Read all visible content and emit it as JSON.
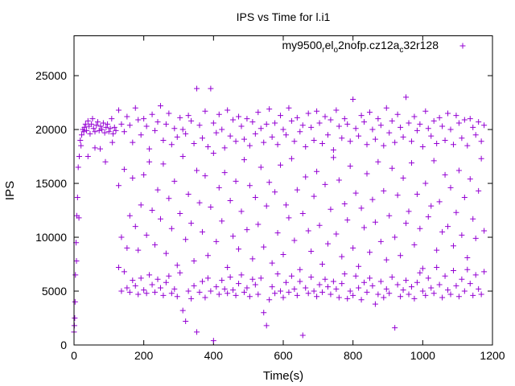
{
  "chart_data": {
    "type": "scatter",
    "title": "IPS vs Time for l.i1",
    "xlabel": "Time(s)",
    "ylabel": "IPS",
    "xlim": [
      0,
      1200
    ],
    "ylim": [
      0,
      28700
    ],
    "xticks": [
      "0",
      "200",
      "400",
      "600",
      "800",
      "1000",
      "1200"
    ],
    "xtick_values": [
      0,
      200,
      400,
      600,
      800,
      1000,
      1200
    ],
    "yticks": [
      "0",
      "5000",
      "10000",
      "15000",
      "20000",
      "25000"
    ],
    "ytick_values": [
      0,
      5000,
      10000,
      15000,
      20000,
      25000
    ],
    "grid": false,
    "legend_position": "top-right",
    "series": [
      {
        "name": "my9500_rel_o2nofp.cz12a_c32r128",
        "legend_parts": [
          {
            "t": "my9500",
            "sub": false
          },
          {
            "t": "r",
            "sub": true
          },
          {
            "t": "el",
            "sub": false
          },
          {
            "t": "o",
            "sub": true
          },
          {
            "t": "2nofp.cz12a",
            "sub": false
          },
          {
            "t": "c",
            "sub": true
          },
          {
            "t": "32r128",
            "sub": false
          }
        ],
        "color": "#9400d3",
        "marker": "plus",
        "points": [
          [
            0,
            1200
          ],
          [
            1,
            1800
          ],
          [
            2,
            2500
          ],
          [
            3,
            4000
          ],
          [
            4,
            6500
          ],
          [
            6,
            9500
          ],
          [
            7,
            7800
          ],
          [
            8,
            12000
          ],
          [
            10,
            13700
          ],
          [
            12,
            16500
          ],
          [
            14,
            11800
          ],
          [
            15,
            17500
          ],
          [
            18,
            19000
          ],
          [
            20,
            18500
          ],
          [
            22,
            19500
          ],
          [
            25,
            20000
          ],
          [
            28,
            19800
          ],
          [
            30,
            20200
          ],
          [
            33,
            20500
          ],
          [
            36,
            19900
          ],
          [
            40,
            20800
          ],
          [
            43,
            20300
          ],
          [
            46,
            19600
          ],
          [
            50,
            20500
          ],
          [
            53,
            21000
          ],
          [
            56,
            20100
          ],
          [
            60,
            19800
          ],
          [
            64,
            20400
          ],
          [
            68,
            20700
          ],
          [
            72,
            19900
          ],
          [
            76,
            20300
          ],
          [
            80,
            20000
          ],
          [
            84,
            20600
          ],
          [
            88,
            19700
          ],
          [
            92,
            20200
          ],
          [
            96,
            20500
          ],
          [
            100,
            19800
          ],
          [
            104,
            20100
          ],
          [
            108,
            21000
          ],
          [
            112,
            19600
          ],
          [
            116,
            20200
          ],
          [
            120,
            19900
          ],
          [
            60,
            18300
          ],
          [
            75,
            18200
          ],
          [
            90,
            17000
          ],
          [
            110,
            18800
          ],
          [
            40,
            17500
          ]
        ],
        "rows": [
          [
            128,
            21800,
            7200,
            14800
          ],
          [
            136,
            20500,
            5000,
            10000
          ],
          [
            144,
            19800,
            6800,
            16300
          ],
          [
            152,
            21200,
            5300,
            9000
          ],
          [
            160,
            20400,
            4900,
            12000
          ],
          [
            168,
            18800,
            6000,
            15500
          ],
          [
            176,
            22000,
            5500,
            11000
          ],
          [
            184,
            20900,
            4700,
            8800
          ],
          [
            192,
            19500,
            6200,
            13000
          ],
          [
            200,
            21000,
            5100,
            15800
          ],
          [
            208,
            20300,
            4800,
            10200
          ],
          [
            216,
            18200,
            6500,
            17000
          ],
          [
            224,
            21400,
            5600,
            12500
          ],
          [
            232,
            19900,
            4900,
            9300
          ],
          [
            240,
            20700,
            6100,
            14400
          ],
          [
            248,
            22200,
            5300,
            11700
          ],
          [
            256,
            19000,
            4600,
            16800
          ],
          [
            264,
            20500,
            5800,
            8500
          ],
          [
            272,
            21500,
            6400,
            13600
          ],
          [
            280,
            18600,
            4800,
            10800
          ],
          [
            288,
            20100,
            5200,
            15200
          ],
          [
            296,
            19300,
            4500,
            7400
          ],
          [
            304,
            21100,
            6700,
            12200
          ],
          [
            312,
            20000,
            3200,
            17500
          ],
          [
            320,
            19600,
            2200,
            9800
          ],
          [
            328,
            21300,
            5000,
            14000
          ],
          [
            336,
            20800,
            4300,
            11300
          ],
          [
            344,
            18700,
            5500,
            7800
          ],
          [
            352,
            23800,
            1200,
            16200
          ],
          [
            360,
            20400,
            4900,
            13200
          ],
          [
            368,
            19200,
            5900,
            10500
          ],
          [
            376,
            21700,
            4400,
            15700
          ],
          [
            384,
            18400,
            6200,
            8300
          ],
          [
            392,
            23800,
            5000,
            12800
          ],
          [
            400,
            20600,
            400,
            17800
          ],
          [
            408,
            19700,
            5400,
            9600
          ],
          [
            416,
            21400,
            4700,
            14600
          ],
          [
            424,
            20000,
            6000,
            11500
          ],
          [
            432,
            18300,
            5200,
            16000
          ],
          [
            440,
            21800,
            4800,
            7200
          ],
          [
            448,
            19400,
            6300,
            13400
          ],
          [
            456,
            20900,
            5100,
            10100
          ],
          [
            464,
            18900,
            4600,
            15200
          ],
          [
            472,
            21200,
            5700,
            8900
          ],
          [
            480,
            20300,
            6500,
            12400
          ],
          [
            488,
            19100,
            4900,
            17200
          ],
          [
            496,
            21000,
            5300,
            10700
          ],
          [
            504,
            18500,
            4500,
            14800
          ],
          [
            512,
            20700,
            6100,
            8000
          ],
          [
            520,
            19600,
            5600,
            13700
          ],
          [
            528,
            21600,
            4700,
            11200
          ],
          [
            536,
            20100,
            6200,
            16500
          ],
          [
            544,
            18800,
            3000,
            9100
          ],
          [
            552,
            20500,
            1800,
            12900
          ],
          [
            560,
            21900,
            4200,
            15100
          ],
          [
            568,
            19300,
            5400,
            7600
          ],
          [
            576,
            20600,
            4800,
            14200
          ],
          [
            584,
            18600,
            6600,
            10400
          ],
          [
            592,
            21300,
            5000,
            16700
          ],
          [
            600,
            20000,
            4400,
            8400
          ],
          [
            608,
            19500,
            5800,
            13000
          ],
          [
            616,
            22000,
            4900,
            11800
          ],
          [
            624,
            20800,
            6400,
            17300
          ],
          [
            632,
            18900,
            5200,
            9700
          ],
          [
            640,
            21100,
            4600,
            14400
          ],
          [
            648,
            19800,
            5900,
            7000
          ],
          [
            656,
            20400,
            900,
            12200
          ],
          [
            664,
            18400,
            5300,
            15600
          ],
          [
            672,
            21500,
            4800,
            10600
          ],
          [
            680,
            20200,
            6300,
            8700
          ],
          [
            688,
            19000,
            5000,
            13800
          ],
          [
            696,
            21700,
            4500,
            16100
          ],
          [
            704,
            20600,
            5600,
            11100
          ],
          [
            712,
            18700,
            4900,
            7500
          ],
          [
            720,
            21200,
            6100,
            14900
          ],
          [
            728,
            19500,
            5400,
            9400
          ],
          [
            736,
            20900,
            4700,
            12600
          ],
          [
            744,
            18100,
            5900,
            17400
          ],
          [
            752,
            21800,
            5200,
            10300
          ],
          [
            760,
            20300,
            4400,
            15300
          ],
          [
            768,
            19200,
            5700,
            8200
          ],
          [
            776,
            21000,
            6600,
            13100
          ],
          [
            784,
            20500,
            4300,
            11600
          ],
          [
            792,
            18900,
            5000,
            16600
          ],
          [
            800,
            22800,
            4600,
            9000
          ],
          [
            808,
            20100,
            6400,
            14100
          ],
          [
            816,
            19400,
            5300,
            7300
          ],
          [
            824,
            21300,
            4200,
            12700
          ],
          [
            832,
            20700,
            5800,
            10900
          ],
          [
            840,
            18600,
            4900,
            15900
          ],
          [
            848,
            21600,
            6200,
            8600
          ],
          [
            856,
            20000,
            5500,
            13500
          ],
          [
            864,
            19100,
            3800,
            11400
          ],
          [
            872,
            21000,
            4700,
            17000
          ],
          [
            880,
            20400,
            5900,
            9600
          ],
          [
            888,
            18500,
            4400,
            14300
          ],
          [
            896,
            22000,
            5200,
            7900
          ],
          [
            904,
            19700,
            4800,
            12000
          ],
          [
            912,
            20800,
            6300,
            16400
          ],
          [
            920,
            18800,
            1600,
            10000
          ],
          [
            928,
            21400,
            5600,
            13900
          ],
          [
            936,
            20200,
            4500,
            8300
          ],
          [
            944,
            19300,
            5100,
            15500
          ],
          [
            952,
            23000,
            6000,
            11300
          ],
          [
            960,
            20600,
            4700,
            12400
          ],
          [
            968,
            18900,
            5400,
            16900
          ],
          [
            976,
            21200,
            4300,
            9300
          ],
          [
            984,
            19900,
            5800,
            14000
          ],
          [
            992,
            20500,
            6700,
            10800
          ],
          [
            1000,
            18400,
            5000,
            7100
          ],
          [
            1008,
            21700,
            4600,
            15000
          ],
          [
            1016,
            20100,
            6200,
            11900
          ],
          [
            1024,
            19400,
            5300,
            12900
          ],
          [
            1032,
            20800,
            4800,
            17100
          ],
          [
            1040,
            18700,
            7200,
            8800
          ],
          [
            1048,
            21100,
            5600,
            13300
          ],
          [
            1056,
            20300,
            4400,
            10500
          ],
          [
            1064,
            19000,
            6400,
            15800
          ],
          [
            1072,
            21500,
            5100,
            11000
          ],
          [
            1080,
            20000,
            4700,
            14600
          ],
          [
            1088,
            18600,
            6900,
            9200
          ],
          [
            1096,
            21300,
            5500,
            12300
          ],
          [
            1104,
            20600,
            4500,
            16200
          ],
          [
            1112,
            19200,
            6100,
            10200
          ],
          [
            1120,
            20900,
            5000,
            13700
          ],
          [
            1128,
            18500,
            7000,
            8100
          ],
          [
            1136,
            21000,
            5700,
            15400
          ],
          [
            1144,
            20200,
            4600,
            11700
          ],
          [
            1152,
            19500,
            6500,
            9900
          ],
          [
            1160,
            20700,
            5200,
            14300
          ],
          [
            1168,
            18900,
            4700,
            17300
          ],
          [
            1176,
            20400,
            6800,
            10600
          ]
        ]
      }
    ]
  }
}
